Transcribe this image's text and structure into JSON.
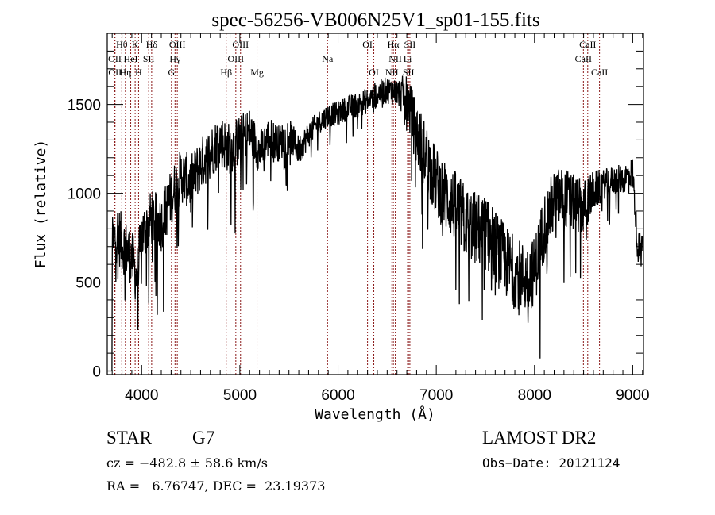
{
  "chart_data": {
    "type": "line",
    "title": "spec-56256-VB006N25V1_sp01-155.fits",
    "xlabel": "Wavelength (Å)",
    "ylabel": "Flux (relative)",
    "xlim": [
      3650,
      9110
    ],
    "ylim": [
      -20,
      1900
    ],
    "xticks": [
      4000,
      5000,
      6000,
      7000,
      8000,
      9000
    ],
    "xtick_labels": [
      "4000",
      "5000",
      "6000",
      "7000",
      "8000",
      "9000"
    ],
    "yticks": [
      0,
      500,
      1000,
      1500
    ],
    "ytick_labels": [
      "0",
      "500",
      "1000",
      "1500"
    ],
    "grid": false,
    "line_color": "#000000",
    "marker_color": "#8b1a1a",
    "spectrum_anchors": [
      [
        3700,
        700
      ],
      [
        3750,
        780
      ],
      [
        3800,
        720
      ],
      [
        3850,
        680
      ],
      [
        3900,
        640
      ],
      [
        3950,
        520
      ],
      [
        4000,
        760
      ],
      [
        4100,
        860
      ],
      [
        4200,
        830
      ],
      [
        4300,
        980
      ],
      [
        4400,
        1100
      ],
      [
        4500,
        1060
      ],
      [
        4600,
        1160
      ],
      [
        4700,
        1230
      ],
      [
        4800,
        1300
      ],
      [
        4900,
        1250
      ],
      [
        5000,
        1300
      ],
      [
        5100,
        1350
      ],
      [
        5200,
        1230
      ],
      [
        5300,
        1320
      ],
      [
        5400,
        1280
      ],
      [
        5500,
        1330
      ],
      [
        5600,
        1240
      ],
      [
        5700,
        1330
      ],
      [
        5800,
        1400
      ],
      [
        5900,
        1440
      ],
      [
        6000,
        1450
      ],
      [
        6100,
        1480
      ],
      [
        6200,
        1500
      ],
      [
        6300,
        1520
      ],
      [
        6400,
        1560
      ],
      [
        6500,
        1580
      ],
      [
        6600,
        1570
      ],
      [
        6700,
        1540
      ],
      [
        6800,
        1330
      ],
      [
        6900,
        1200
      ],
      [
        7000,
        1060
      ],
      [
        7100,
        980
      ],
      [
        7200,
        920
      ],
      [
        7300,
        840
      ],
      [
        7400,
        800
      ],
      [
        7500,
        780
      ],
      [
        7600,
        700
      ],
      [
        7700,
        620
      ],
      [
        7800,
        560
      ],
      [
        7900,
        520
      ],
      [
        8000,
        560
      ],
      [
        8100,
        820
      ],
      [
        8200,
        960
      ],
      [
        8300,
        980
      ],
      [
        8400,
        940
      ],
      [
        8500,
        920
      ],
      [
        8600,
        1010
      ],
      [
        8700,
        1050
      ],
      [
        8800,
        1070
      ],
      [
        8900,
        1080
      ],
      [
        9000,
        1120
      ],
      [
        9050,
        700
      ]
    ],
    "spectrum_noise": [
      [
        3650,
        280
      ],
      [
        4400,
        260
      ],
      [
        5000,
        240
      ],
      [
        5800,
        110
      ],
      [
        6600,
        130
      ],
      [
        6800,
        320
      ],
      [
        7500,
        360
      ],
      [
        8100,
        320
      ],
      [
        8500,
        260
      ],
      [
        8700,
        140
      ],
      [
        9100,
        140
      ]
    ],
    "lines": [
      {
        "name": "Hθ",
        "wavelength": 3798,
        "row": 0
      },
      {
        "name": "K",
        "wavelength": 3934,
        "row": 0
      },
      {
        "name": "Hδ",
        "wavelength": 4102,
        "row": 0
      },
      {
        "name": "OIII",
        "wavelength": 4363,
        "row": 0
      },
      {
        "name": "OIII",
        "wavelength": 5007,
        "row": 0
      },
      {
        "name": "OI",
        "wavelength": 6300,
        "row": 0
      },
      {
        "name": "Hα",
        "wavelength": 6563,
        "row": 0
      },
      {
        "name": "SII",
        "wavelength": 6731,
        "row": 0
      },
      {
        "name": "CaII",
        "wavelength": 8542,
        "row": 0
      },
      {
        "name": "OII",
        "wavelength": 3727,
        "row": 1
      },
      {
        "name": "HeI",
        "wavelength": 3889,
        "row": 1
      },
      {
        "name": "SII",
        "wavelength": 4072,
        "row": 1
      },
      {
        "name": "Hγ",
        "wavelength": 4340,
        "row": 1
      },
      {
        "name": "OIII",
        "wavelength": 4959,
        "row": 1
      },
      {
        "name": "Na",
        "wavelength": 5893,
        "row": 1
      },
      {
        "name": "NII",
        "wavelength": 6583,
        "row": 1
      },
      {
        "name": "Li",
        "wavelength": 6708,
        "row": 1
      },
      {
        "name": "CaII",
        "wavelength": 8498,
        "row": 1
      },
      {
        "name": "OII",
        "wavelength": 3729,
        "row": 2
      },
      {
        "name": "Hη",
        "wavelength": 3835,
        "row": 2
      },
      {
        "name": "H",
        "wavelength": 3969,
        "row": 2
      },
      {
        "name": "G",
        "wavelength": 4304,
        "row": 2
      },
      {
        "name": "Hβ",
        "wavelength": 4861,
        "row": 2
      },
      {
        "name": "Mg",
        "wavelength": 5175,
        "row": 2
      },
      {
        "name": "OI",
        "wavelength": 6364,
        "row": 2
      },
      {
        "name": "NII",
        "wavelength": 6548,
        "row": 2
      },
      {
        "name": "SII",
        "wavelength": 6717,
        "row": 2
      },
      {
        "name": "CaII",
        "wavelength": 8662,
        "row": 2
      }
    ]
  },
  "info": {
    "object_class": "STAR",
    "subclass": "G7",
    "cz": "cz = −482.8 ± 58.6 km/s",
    "coords": "RA =   6.76747, DEC =  23.19373",
    "survey": "LAMOST DR2",
    "obs_date": "Obs−Date: 20121124"
  }
}
